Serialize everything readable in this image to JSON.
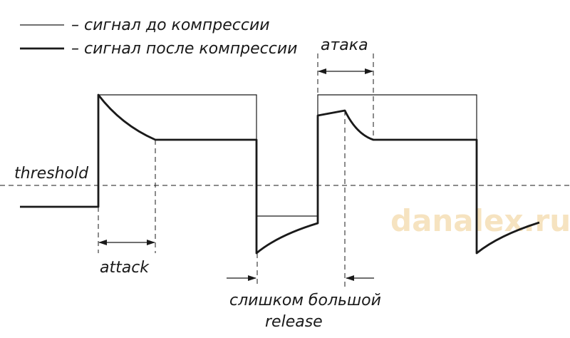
{
  "legend": {
    "before_label": "– сигнал до компрессии",
    "after_label": "– сигнал после компрессии"
  },
  "labels": {
    "threshold": "threshold",
    "attack": "attack",
    "attack_ru": "атака",
    "release_line1": "слишком большой",
    "release_line2": "release"
  },
  "watermark": {
    "text": "danalex.ru",
    "color": "#f6e3c0"
  },
  "colors": {
    "ink": "#1a1a1a"
  }
}
